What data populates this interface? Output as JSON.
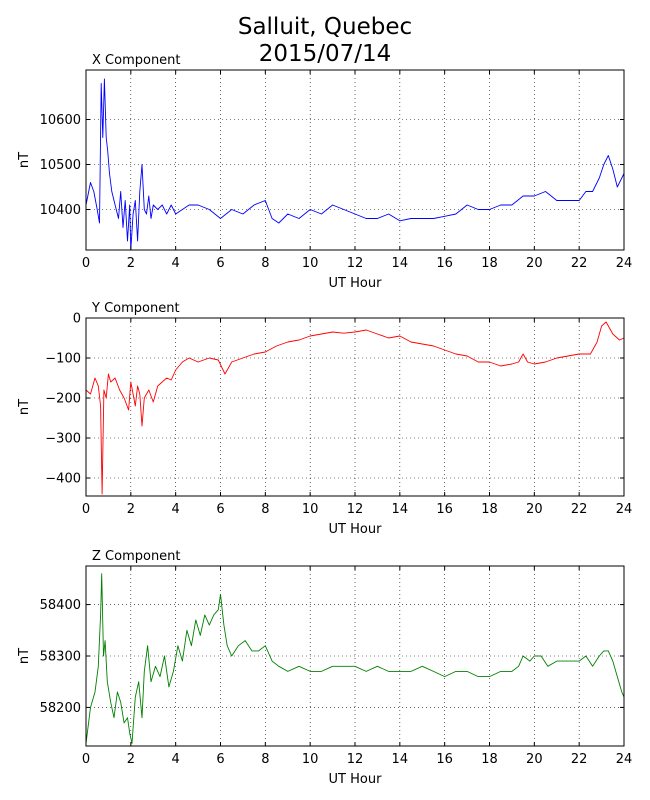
{
  "title_line1": "Salluit, Quebec",
  "title_line2": "2015/07/14",
  "chart_data": [
    {
      "type": "line",
      "title": "X Component",
      "xlabel": "UT Hour",
      "ylabel": "nT",
      "xlim": [
        0,
        24
      ],
      "ylim": [
        10310,
        10710
      ],
      "xticks": [
        0,
        2,
        4,
        6,
        8,
        10,
        12,
        14,
        16,
        18,
        20,
        22,
        24
      ],
      "yticks": [
        10400,
        10500,
        10600
      ],
      "grid": true,
      "color": "#0000ff",
      "x": [
        0,
        0.2,
        0.35,
        0.5,
        0.6,
        0.68,
        0.75,
        0.82,
        0.9,
        0.97,
        1.05,
        1.15,
        1.3,
        1.45,
        1.55,
        1.65,
        1.75,
        1.85,
        1.95,
        2.0,
        2.1,
        2.2,
        2.3,
        2.4,
        2.5,
        2.6,
        2.7,
        2.8,
        2.9,
        3.0,
        3.2,
        3.4,
        3.6,
        3.8,
        4.0,
        4.3,
        4.6,
        5.0,
        5.5,
        6.0,
        6.5,
        7.0,
        7.5,
        8.0,
        8.3,
        8.6,
        9.0,
        9.5,
        10.0,
        10.5,
        11.0,
        11.5,
        12.0,
        12.5,
        13.0,
        13.5,
        14.0,
        14.5,
        15.0,
        15.5,
        16.0,
        16.5,
        17.0,
        17.5,
        18.0,
        18.5,
        19.0,
        19.5,
        20.0,
        20.5,
        21.0,
        21.5,
        22.0,
        22.3,
        22.6,
        22.9,
        23.1,
        23.3,
        23.5,
        23.7,
        23.9,
        24.0
      ],
      "values": [
        10410,
        10460,
        10440,
        10400,
        10370,
        10680,
        10560,
        10690,
        10560,
        10530,
        10480,
        10440,
        10410,
        10380,
        10440,
        10360,
        10420,
        10330,
        10410,
        10310,
        10390,
        10420,
        10330,
        10440,
        10500,
        10400,
        10390,
        10430,
        10380,
        10410,
        10400,
        10410,
        10390,
        10410,
        10390,
        10400,
        10410,
        10410,
        10400,
        10380,
        10400,
        10390,
        10410,
        10420,
        10380,
        10370,
        10390,
        10380,
        10400,
        10390,
        10410,
        10400,
        10390,
        10380,
        10380,
        10390,
        10375,
        10380,
        10380,
        10380,
        10385,
        10390,
        10410,
        10400,
        10400,
        10410,
        10410,
        10430,
        10430,
        10440,
        10420,
        10420,
        10420,
        10440,
        10440,
        10470,
        10500,
        10520,
        10490,
        10450,
        10470,
        10480
      ]
    },
    {
      "type": "line",
      "title": "Y Component",
      "xlabel": "UT Hour",
      "ylabel": "nT",
      "xlim": [
        0,
        24
      ],
      "ylim": [
        -445,
        0
      ],
      "xticks": [
        0,
        2,
        4,
        6,
        8,
        10,
        12,
        14,
        16,
        18,
        20,
        22,
        24
      ],
      "yticks": [
        0,
        -100,
        -200,
        -300,
        -400
      ],
      "grid": true,
      "color": "#ff0000",
      "x": [
        0,
        0.2,
        0.4,
        0.55,
        0.65,
        0.72,
        0.8,
        0.9,
        1.0,
        1.1,
        1.3,
        1.5,
        1.7,
        1.9,
        2.0,
        2.1,
        2.2,
        2.3,
        2.4,
        2.5,
        2.6,
        2.8,
        3.0,
        3.2,
        3.4,
        3.6,
        3.8,
        4.0,
        4.3,
        4.6,
        5.0,
        5.5,
        5.9,
        6.2,
        6.5,
        7.0,
        7.5,
        8.0,
        8.5,
        9.0,
        9.5,
        10.0,
        10.5,
        11.0,
        11.5,
        12.0,
        12.5,
        13.0,
        13.5,
        14.0,
        14.5,
        15.0,
        15.5,
        16.0,
        16.5,
        17.0,
        17.5,
        18.0,
        18.5,
        19.0,
        19.3,
        19.5,
        19.7,
        20.0,
        20.5,
        21.0,
        21.5,
        22.0,
        22.5,
        22.8,
        23.0,
        23.2,
        23.5,
        23.8,
        24.0
      ],
      "values": [
        -180,
        -190,
        -150,
        -170,
        -220,
        -440,
        -180,
        -200,
        -140,
        -160,
        -150,
        -180,
        -200,
        -230,
        -160,
        -190,
        -220,
        -170,
        -190,
        -270,
        -200,
        -180,
        -210,
        -170,
        -160,
        -150,
        -155,
        -130,
        -110,
        -100,
        -110,
        -100,
        -105,
        -140,
        -110,
        -100,
        -90,
        -85,
        -70,
        -60,
        -55,
        -45,
        -40,
        -35,
        -38,
        -35,
        -30,
        -40,
        -50,
        -45,
        -60,
        -65,
        -70,
        -80,
        -90,
        -95,
        -110,
        -110,
        -120,
        -115,
        -110,
        -90,
        -110,
        -115,
        -110,
        -100,
        -95,
        -90,
        -90,
        -60,
        -20,
        -10,
        -40,
        -55,
        -50
      ]
    },
    {
      "type": "line",
      "title": "Z Component",
      "xlabel": "UT Hour",
      "ylabel": "nT",
      "xlim": [
        0,
        24
      ],
      "ylim": [
        58125,
        58475
      ],
      "xticks": [
        0,
        2,
        4,
        6,
        8,
        10,
        12,
        14,
        16,
        18,
        20,
        22,
        24
      ],
      "yticks": [
        58200,
        58300,
        58400
      ],
      "grid": true,
      "color": "#008000",
      "x": [
        0,
        0.2,
        0.4,
        0.55,
        0.65,
        0.7,
        0.78,
        0.85,
        0.95,
        1.1,
        1.25,
        1.4,
        1.55,
        1.7,
        1.85,
        1.95,
        2.05,
        2.2,
        2.35,
        2.5,
        2.6,
        2.75,
        2.9,
        3.1,
        3.3,
        3.5,
        3.7,
        3.9,
        4.1,
        4.3,
        4.5,
        4.7,
        4.9,
        5.1,
        5.3,
        5.5,
        5.7,
        5.9,
        6.0,
        6.15,
        6.3,
        6.5,
        6.8,
        7.1,
        7.4,
        7.7,
        8.0,
        8.3,
        8.6,
        9.0,
        9.5,
        10.0,
        10.5,
        11.0,
        11.5,
        12.0,
        12.5,
        13.0,
        13.5,
        14.0,
        14.5,
        15.0,
        15.5,
        16.0,
        16.5,
        17.0,
        17.5,
        18.0,
        18.5,
        19.0,
        19.3,
        19.5,
        19.8,
        20.0,
        20.3,
        20.6,
        21.0,
        21.5,
        22.0,
        22.3,
        22.6,
        22.9,
        23.1,
        23.3,
        23.5,
        23.7,
        23.9,
        24.0
      ],
      "values": [
        58130,
        58200,
        58230,
        58280,
        58380,
        58460,
        58300,
        58330,
        58250,
        58210,
        58180,
        58230,
        58210,
        58170,
        58180,
        58150,
        58130,
        58220,
        58250,
        58180,
        58270,
        58320,
        58250,
        58280,
        58260,
        58300,
        58240,
        58270,
        58320,
        58290,
        58350,
        58320,
        58370,
        58340,
        58380,
        58360,
        58380,
        58390,
        58420,
        58360,
        58320,
        58300,
        58320,
        58330,
        58310,
        58310,
        58320,
        58290,
        58280,
        58270,
        58280,
        58270,
        58270,
        58280,
        58280,
        58280,
        58270,
        58280,
        58270,
        58270,
        58270,
        58280,
        58270,
        58260,
        58270,
        58270,
        58260,
        58260,
        58270,
        58270,
        58280,
        58300,
        58290,
        58300,
        58300,
        58280,
        58290,
        58290,
        58290,
        58300,
        58280,
        58300,
        58310,
        58310,
        58290,
        58260,
        58230,
        58220
      ]
    }
  ]
}
